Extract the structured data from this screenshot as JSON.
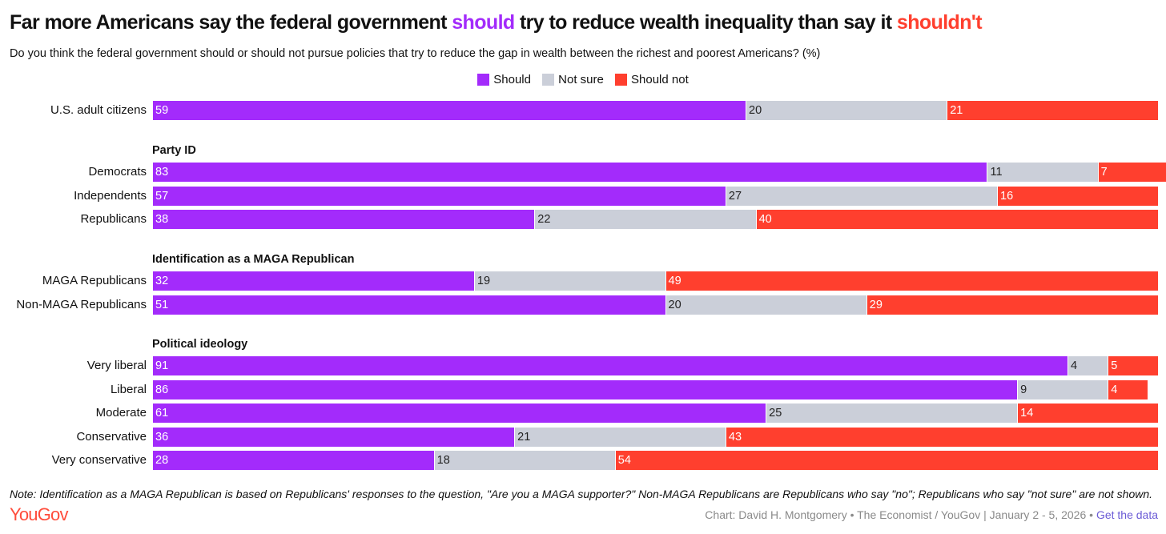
{
  "title": {
    "part1": "Far more Americans say the federal government ",
    "should": "should",
    "part2": " try to reduce wealth inequality than say it ",
    "shouldnt": "shouldn't"
  },
  "subtitle": "Do you think the federal government should or should not pursue policies that try to reduce the gap in wealth between the richest and poorest Americans? (%)",
  "colors": {
    "should": "#a32bfb",
    "not_sure": "#cbcfd9",
    "should_not": "#ff3f2e"
  },
  "chart_data": {
    "type": "bar",
    "stacked": true,
    "orientation": "horizontal",
    "unit": "%",
    "xlim": [
      0,
      100
    ],
    "legend": {
      "position": "top-center",
      "entries": [
        "Should",
        "Not sure",
        "Should not"
      ]
    },
    "series_names": [
      "Should",
      "Not sure",
      "Should not"
    ],
    "groups": [
      {
        "header": "",
        "rows": [
          {
            "label": "U.S. adult citizens",
            "values": [
              59,
              20,
              21
            ]
          }
        ]
      },
      {
        "header": "Party ID",
        "rows": [
          {
            "label": "Democrats",
            "values": [
              83,
              11,
              7
            ]
          },
          {
            "label": "Independents",
            "values": [
              57,
              27,
              16
            ]
          },
          {
            "label": "Republicans",
            "values": [
              38,
              22,
              40
            ]
          }
        ]
      },
      {
        "header": "Identification as a MAGA Republican",
        "rows": [
          {
            "label": "MAGA Republicans",
            "values": [
              32,
              19,
              49
            ]
          },
          {
            "label": "Non-MAGA Republicans",
            "values": [
              51,
              20,
              29
            ]
          }
        ]
      },
      {
        "header": "Political ideology",
        "rows": [
          {
            "label": "Very liberal",
            "values": [
              91,
              4,
              5
            ]
          },
          {
            "label": "Liberal",
            "values": [
              86,
              9,
              4
            ]
          },
          {
            "label": "Moderate",
            "values": [
              61,
              25,
              14
            ]
          },
          {
            "label": "Conservative",
            "values": [
              36,
              21,
              43
            ]
          },
          {
            "label": "Very conservative",
            "values": [
              28,
              18,
              54
            ]
          }
        ]
      }
    ]
  },
  "footer": {
    "note": "Note: Identification as a MAGA Republican is based on Republicans' responses to the question, \"Are you a MAGA supporter?\" Non-MAGA Republicans are Republicans who say \"no\"; Republicans who say \"not sure\" are not shown.",
    "logo": "YouGov",
    "credit": "Chart: David H. Montgomery • The Economist / YouGov | January 2 - 5, 2026 • ",
    "get_data": "Get the data"
  }
}
